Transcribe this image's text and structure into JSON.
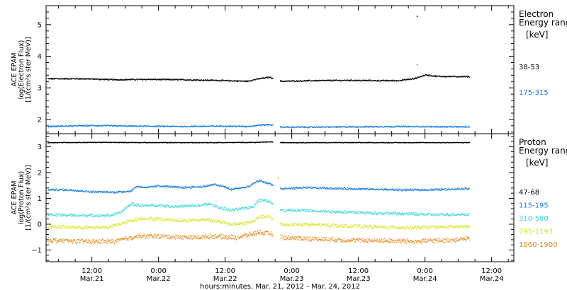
{
  "chart_data": [
    {
      "type": "scatter",
      "name": "electron-panel",
      "ylabel_lines": [
        "ACE EPAM",
        "log(Electron Flux)",
        "[1/(cm²s ster MeV)]"
      ],
      "ylim": [
        1.55,
        5.6
      ],
      "yticks": [
        2,
        3,
        4,
        5
      ],
      "legend": {
        "title_lines": [
          "Electron",
          "Energy ranges"
        ],
        "unit": "[keV]"
      },
      "series": [
        {
          "name": "38-53",
          "color": "#000000",
          "points": [
            [
              0,
              3.3
            ],
            [
              6,
              3.3
            ],
            [
              12,
              3.27
            ],
            [
              18,
              3.28
            ],
            [
              24,
              3.27
            ],
            [
              30,
              3.25
            ],
            [
              36,
              3.22
            ],
            [
              38,
              3.3
            ],
            [
              40,
              3.35
            ],
            [
              42,
              3.22
            ],
            [
              48,
              3.24
            ],
            [
              54,
              3.25
            ],
            [
              60,
              3.24
            ],
            [
              63,
              3.24
            ],
            [
              66,
              3.3
            ],
            [
              68,
              3.42
            ],
            [
              70,
              3.38
            ],
            [
              72,
              3.37
            ],
            [
              76,
              3.37
            ]
          ]
        },
        {
          "name": "175-315",
          "color": "#1c7ddc",
          "points": [
            [
              0,
              1.79
            ],
            [
              8,
              1.82
            ],
            [
              16,
              1.8
            ],
            [
              24,
              1.79
            ],
            [
              32,
              1.8
            ],
            [
              36,
              1.79
            ],
            [
              38,
              1.83
            ],
            [
              40,
              1.85
            ],
            [
              42,
              1.77
            ],
            [
              48,
              1.77
            ],
            [
              56,
              1.78
            ],
            [
              64,
              1.79
            ],
            [
              72,
              1.78
            ],
            [
              76,
              1.78
            ]
          ]
        }
      ],
      "outliers": [
        {
          "series": "38-53",
          "x": 66.5,
          "y": 5.28
        },
        {
          "series": "175-315",
          "x": 66.5,
          "y": 3.75
        }
      ]
    },
    {
      "type": "scatter",
      "name": "proton-panel",
      "ylabel_lines": [
        "ACE EPAM",
        "log(Proton Flux)",
        "[1/(cm²s ster MeV)]"
      ],
      "ylim": [
        -1.45,
        3.5
      ],
      "yticks": [
        -1,
        0,
        1,
        2,
        3
      ],
      "legend": {
        "title_lines": [
          "Proton",
          "Energy ranges"
        ],
        "unit": "[keV]"
      },
      "series": [
        {
          "name": "47-68",
          "color": "#000000",
          "points": [
            [
              0,
              3.17
            ],
            [
              10,
              3.18
            ],
            [
              20,
              3.17
            ],
            [
              30,
              3.17
            ],
            [
              38,
              3.18
            ],
            [
              40,
              3.2
            ],
            [
              42,
              3.17
            ],
            [
              50,
              3.17
            ],
            [
              60,
              3.17
            ],
            [
              70,
              3.17
            ],
            [
              76,
              3.17
            ]
          ]
        },
        {
          "name": "115-195",
          "color": "#1c7ddc",
          "points": [
            [
              0,
              1.35
            ],
            [
              4,
              1.34
            ],
            [
              8,
              1.27
            ],
            [
              12,
              1.25
            ],
            [
              15,
              1.3
            ],
            [
              16,
              1.48
            ],
            [
              18,
              1.43
            ],
            [
              20,
              1.5
            ],
            [
              24,
              1.43
            ],
            [
              28,
              1.47
            ],
            [
              30,
              1.55
            ],
            [
              32,
              1.45
            ],
            [
              33,
              1.35
            ],
            [
              34,
              1.4
            ],
            [
              36,
              1.45
            ],
            [
              38,
              1.7
            ],
            [
              40,
              1.58
            ],
            [
              42,
              1.38
            ],
            [
              46,
              1.43
            ],
            [
              52,
              1.4
            ],
            [
              58,
              1.37
            ],
            [
              64,
              1.34
            ],
            [
              70,
              1.35
            ],
            [
              76,
              1.4
            ]
          ]
        },
        {
          "name": "310-580",
          "color": "#3ad6d6",
          "points": [
            [
              0,
              0.38
            ],
            [
              6,
              0.35
            ],
            [
              11,
              0.35
            ],
            [
              13,
              0.45
            ],
            [
              15,
              0.8
            ],
            [
              17,
              0.72
            ],
            [
              19,
              0.75
            ],
            [
              23,
              0.7
            ],
            [
              27,
              0.73
            ],
            [
              29,
              0.8
            ],
            [
              31,
              0.65
            ],
            [
              33,
              0.55
            ],
            [
              35,
              0.62
            ],
            [
              37,
              0.7
            ],
            [
              38,
              0.95
            ],
            [
              40,
              0.9
            ],
            [
              42,
              0.55
            ],
            [
              46,
              0.55
            ],
            [
              52,
              0.5
            ],
            [
              58,
              0.45
            ],
            [
              64,
              0.42
            ],
            [
              70,
              0.38
            ],
            [
              76,
              0.4
            ]
          ]
        },
        {
          "name": "795-1193",
          "color": "#d3e61c",
          "points": [
            [
              0,
              -0.07
            ],
            [
              6,
              -0.12
            ],
            [
              11,
              -0.1
            ],
            [
              15,
              0.15
            ],
            [
              17,
              0.25
            ],
            [
              21,
              0.2
            ],
            [
              25,
              0.15
            ],
            [
              29,
              0.2
            ],
            [
              31,
              0.1
            ],
            [
              33,
              0.0
            ],
            [
              35,
              0.05
            ],
            [
              37,
              0.1
            ],
            [
              38,
              0.3
            ],
            [
              40,
              0.3
            ],
            [
              42,
              0.0
            ],
            [
              48,
              0.0
            ],
            [
              54,
              -0.05
            ],
            [
              60,
              -0.1
            ],
            [
              66,
              -0.12
            ],
            [
              70,
              -0.1
            ],
            [
              76,
              -0.08
            ]
          ]
        },
        {
          "name": "1060-1900",
          "color": "#e6820e",
          "points": [
            [
              0,
              -0.6
            ],
            [
              6,
              -0.65
            ],
            [
              12,
              -0.65
            ],
            [
              16,
              -0.45
            ],
            [
              20,
              -0.45
            ],
            [
              26,
              -0.5
            ],
            [
              30,
              -0.45
            ],
            [
              34,
              -0.5
            ],
            [
              38,
              -0.3
            ],
            [
              40,
              -0.35
            ],
            [
              42,
              -0.5
            ],
            [
              48,
              -0.55
            ],
            [
              54,
              -0.6
            ],
            [
              60,
              -0.62
            ],
            [
              66,
              -0.65
            ],
            [
              72,
              -0.6
            ],
            [
              76,
              -0.55
            ]
          ]
        }
      ],
      "outliers": [
        {
          "series": "1060-1900",
          "x": 41.5,
          "y": 1.8
        }
      ]
    }
  ],
  "x_axis": {
    "unit": "hours since 2012-03-21 00:00",
    "xlim": [
      3.75,
      88
    ],
    "ticks": [
      {
        "x": 12,
        "time": "12:00",
        "date": "Mar.21"
      },
      {
        "x": 24,
        "time": "0:00",
        "date": "Mar.22"
      },
      {
        "x": 36,
        "time": "12:00",
        "date": "Mar.22"
      },
      {
        "x": 48,
        "time": "0:00",
        "date": "Mar.23"
      },
      {
        "x": 60,
        "time": "12:00",
        "date": "Mar.23"
      },
      {
        "x": 72,
        "time": "0:00",
        "date": "Mar.24"
      },
      {
        "x": 84,
        "time": "12:00",
        "date": "Mar.24"
      }
    ],
    "xlabel": "hours:minutes, Mar. 21, 2012 - Mar. 24, 2012"
  }
}
